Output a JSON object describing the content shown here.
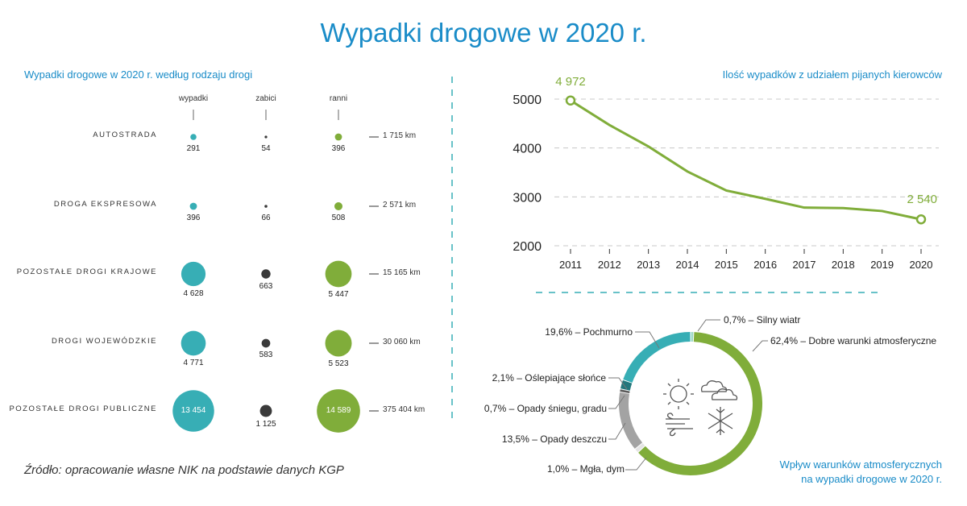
{
  "title": "Wypadki drogowe w 2020 r.",
  "source": "Źródło: opracowanie własne NIK na podstawie danych KGP",
  "colors": {
    "accent": "#1a8cc8",
    "teal": "#37aeb5",
    "green": "#80ad3a",
    "dark": "#3a3a3a"
  },
  "chart_data": [
    {
      "type": "bubble-table",
      "title": "Wypadki drogowe w 2020 r. według rodzaju drogi",
      "columns": [
        "wypadki",
        "zabici",
        "ranni"
      ],
      "rows": [
        {
          "label": "AUTOSTRADA",
          "values": [
            291,
            54,
            396
          ],
          "values_text": [
            "291",
            "54",
            "396"
          ],
          "length": "1 715 km"
        },
        {
          "label": "DROGA EKSPRESOWA",
          "values": [
            396,
            66,
            508
          ],
          "values_text": [
            "396",
            "66",
            "508"
          ],
          "length": "2 571 km"
        },
        {
          "label": "POZOSTAŁE DROGI KRAJOWE",
          "values": [
            4628,
            663,
            5447
          ],
          "values_text": [
            "4 628",
            "663",
            "5 447"
          ],
          "length": "15 165 km"
        },
        {
          "label": "DROGI WOJEWÓDZKIE",
          "values": [
            4771,
            583,
            5523
          ],
          "values_text": [
            "4 771",
            "583",
            "5 523"
          ],
          "length": "30 060 km"
        },
        {
          "label": "POZOSTAŁE DROGI PUBLICZNE",
          "values": [
            13454,
            1125,
            14589
          ],
          "values_text": [
            "13 454",
            "1 125",
            "14 589"
          ],
          "length": "375 404 km"
        }
      ]
    },
    {
      "type": "line",
      "title": "Ilość wypadków z udziałem pijanych kierowców",
      "x": [
        2011,
        2012,
        2013,
        2014,
        2015,
        2016,
        2017,
        2018,
        2019,
        2020
      ],
      "x_labels": [
        "2011",
        "2012",
        "2013",
        "2014",
        "2015",
        "2016",
        "2017",
        "2018",
        "2019",
        "2020"
      ],
      "values": [
        4972,
        4470,
        4030,
        3520,
        3130,
        2960,
        2780,
        2770,
        2710,
        2540
      ],
      "first_label": "4 972",
      "last_label": "2 540",
      "yticks": [
        2000,
        3000,
        4000,
        5000
      ],
      "ytick_labels": [
        "2000",
        "3000",
        "4000",
        "5000"
      ],
      "ylim": [
        2000,
        5000
      ],
      "grid": true
    },
    {
      "type": "pie",
      "title_lines": [
        "Wpływ warunków atmosferycznych",
        "na wypadki drogowe w 2020 r."
      ],
      "slices": [
        {
          "label": "0,7% – Silny wiatr",
          "value": 0.7,
          "color": "#9ed9c6"
        },
        {
          "label": "62,4% – Dobre warunki atmosferyczne",
          "value": 62.4,
          "color": "#80ad3a"
        },
        {
          "label": "1,0% – Mgła, dym",
          "value": 1.0,
          "color": "#e4e4e4"
        },
        {
          "label": "13,5% – Opady deszczu",
          "value": 13.5,
          "color": "#a3a3a3"
        },
        {
          "label": "0,7% – Opady śniegu, gradu",
          "value": 0.7,
          "color": "#5a5a5a"
        },
        {
          "label": "2,1% – Oślepiające słońce",
          "value": 2.1,
          "color": "#23777c"
        },
        {
          "label": "19,6% – Pochmurno",
          "value": 19.6,
          "color": "#37aeb5"
        }
      ]
    }
  ]
}
